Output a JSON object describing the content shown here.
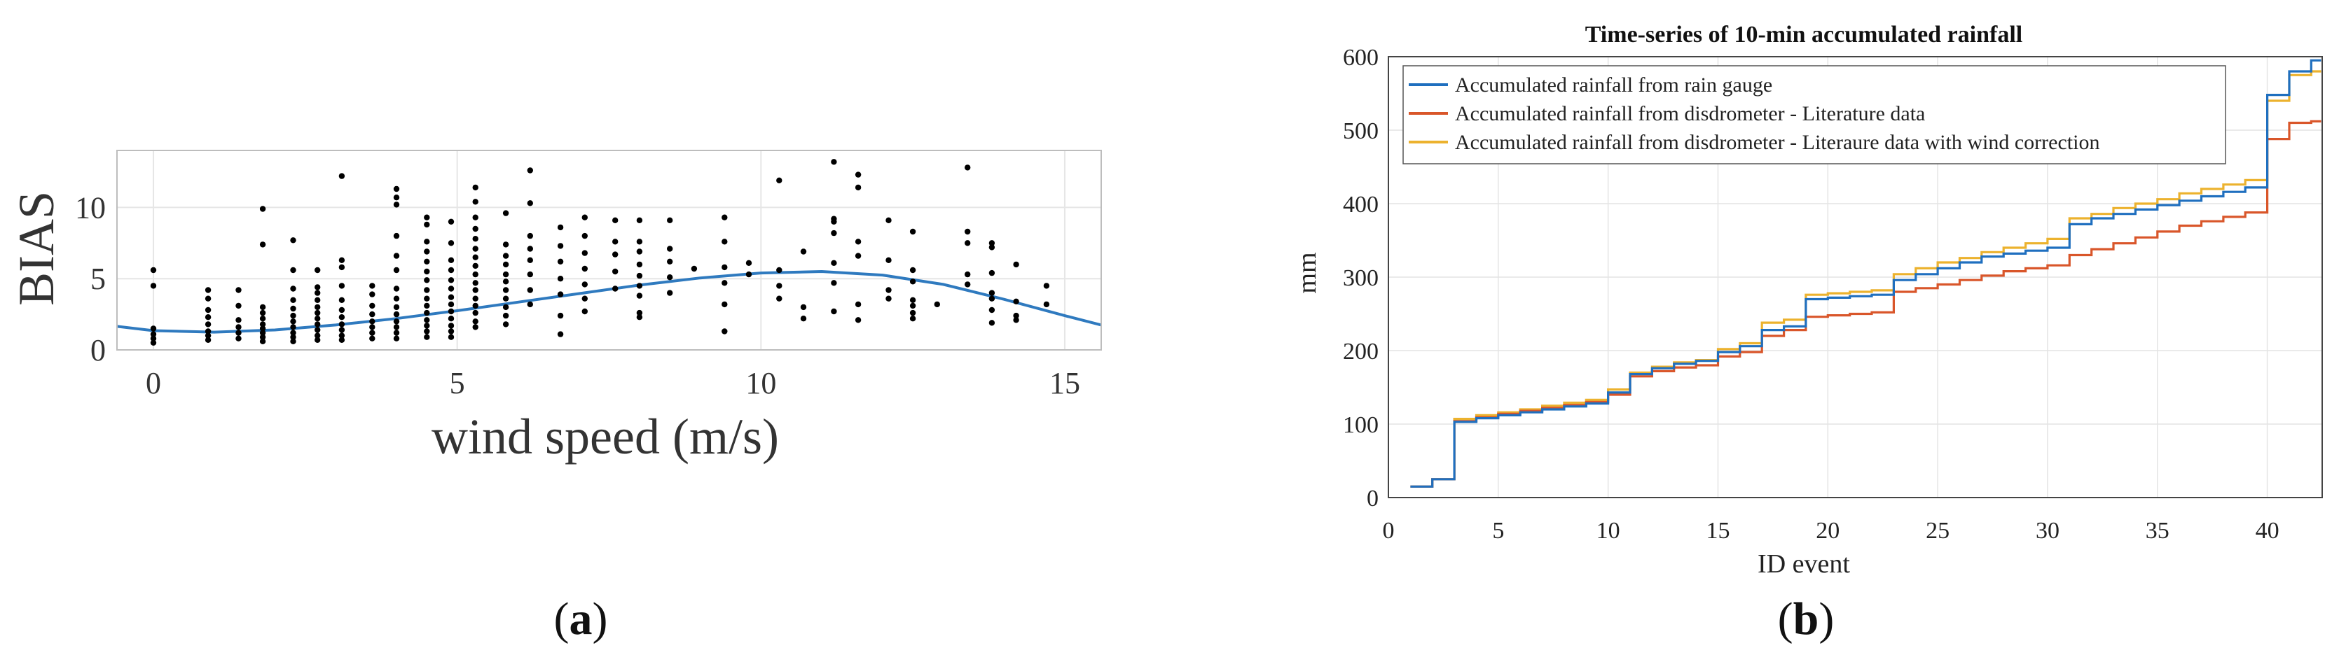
{
  "captions": {
    "a": "a",
    "b": "b"
  },
  "chart_data": [
    {
      "id": "a",
      "type": "scatter",
      "title": "",
      "xlabel": "wind speed (m/s)",
      "ylabel": "BIAS",
      "xlim": [
        -0.6,
        15.6
      ],
      "ylim": [
        0,
        14
      ],
      "xticks": [
        0,
        5,
        10,
        15
      ],
      "yticks": [
        0,
        5,
        10
      ],
      "grid": true,
      "colors": {
        "points": "#000000",
        "fit": "#2f7abf"
      },
      "fit_curve": {
        "type": "line",
        "x": [
          -0.6,
          0,
          1,
          2,
          3,
          4,
          5,
          6,
          7,
          8,
          9,
          10,
          11,
          12,
          13,
          14,
          15,
          15.6
        ],
        "y": [
          1.65,
          1.35,
          1.25,
          1.4,
          1.75,
          2.2,
          2.75,
          3.35,
          3.95,
          4.55,
          5.05,
          5.4,
          5.5,
          5.25,
          4.6,
          3.55,
          2.4,
          1.75
        ]
      },
      "points": [
        [
          0,
          0.5
        ],
        [
          0,
          0.8
        ],
        [
          0,
          1.1
        ],
        [
          0,
          1.5
        ],
        [
          0,
          4.5
        ],
        [
          0,
          5.6
        ],
        [
          0.9,
          0.7
        ],
        [
          0.9,
          1.0
        ],
        [
          0.9,
          1.3
        ],
        [
          0.9,
          1.8
        ],
        [
          0.9,
          2.3
        ],
        [
          0.9,
          2.8
        ],
        [
          0.9,
          3.6
        ],
        [
          0.9,
          4.2
        ],
        [
          1.4,
          0.8
        ],
        [
          1.4,
          1.2
        ],
        [
          1.4,
          1.6
        ],
        [
          1.4,
          2.1
        ],
        [
          1.4,
          3.1
        ],
        [
          1.4,
          4.2
        ],
        [
          1.8,
          0.6
        ],
        [
          1.8,
          0.9
        ],
        [
          1.8,
          1.2
        ],
        [
          1.8,
          1.5
        ],
        [
          1.8,
          1.8
        ],
        [
          1.8,
          2.2
        ],
        [
          1.8,
          2.6
        ],
        [
          1.8,
          3.0
        ],
        [
          1.8,
          7.4
        ],
        [
          1.8,
          9.9
        ],
        [
          2.3,
          0.6
        ],
        [
          2.3,
          0.9
        ],
        [
          2.3,
          1.2
        ],
        [
          2.3,
          1.6
        ],
        [
          2.3,
          2.0
        ],
        [
          2.3,
          2.4
        ],
        [
          2.3,
          2.9
        ],
        [
          2.3,
          3.5
        ],
        [
          2.3,
          4.3
        ],
        [
          2.3,
          5.6
        ],
        [
          2.3,
          7.7
        ],
        [
          2.7,
          0.7
        ],
        [
          2.7,
          1.0
        ],
        [
          2.7,
          1.4
        ],
        [
          2.7,
          1.8
        ],
        [
          2.7,
          2.2
        ],
        [
          2.7,
          2.6
        ],
        [
          2.7,
          3.0
        ],
        [
          2.7,
          3.5
        ],
        [
          2.7,
          4.0
        ],
        [
          2.7,
          4.4
        ],
        [
          2.7,
          5.6
        ],
        [
          3.1,
          0.7
        ],
        [
          3.1,
          1.0
        ],
        [
          3.1,
          1.4
        ],
        [
          3.1,
          1.8
        ],
        [
          3.1,
          2.3
        ],
        [
          3.1,
          2.8
        ],
        [
          3.1,
          3.5
        ],
        [
          3.1,
          4.5
        ],
        [
          3.1,
          5.8
        ],
        [
          3.1,
          6.3
        ],
        [
          3.1,
          12.2
        ],
        [
          3.6,
          0.8
        ],
        [
          3.6,
          1.2
        ],
        [
          3.6,
          1.6
        ],
        [
          3.6,
          2.0
        ],
        [
          3.6,
          2.5
        ],
        [
          3.6,
          3.1
        ],
        [
          3.6,
          3.9
        ],
        [
          3.6,
          4.5
        ],
        [
          4.0,
          0.8
        ],
        [
          4.0,
          1.2
        ],
        [
          4.0,
          1.6
        ],
        [
          4.0,
          2.0
        ],
        [
          4.0,
          2.5
        ],
        [
          4.0,
          3.0
        ],
        [
          4.0,
          3.6
        ],
        [
          4.0,
          4.3
        ],
        [
          4.0,
          5.6
        ],
        [
          4.0,
          6.6
        ],
        [
          4.0,
          8.0
        ],
        [
          4.0,
          10.2
        ],
        [
          4.0,
          10.7
        ],
        [
          4.0,
          11.3
        ],
        [
          4.5,
          0.9
        ],
        [
          4.5,
          1.3
        ],
        [
          4.5,
          1.7
        ],
        [
          4.5,
          2.1
        ],
        [
          4.5,
          2.6
        ],
        [
          4.5,
          3.1
        ],
        [
          4.5,
          3.6
        ],
        [
          4.5,
          4.2
        ],
        [
          4.5,
          4.9
        ],
        [
          4.5,
          5.5
        ],
        [
          4.5,
          6.2
        ],
        [
          4.5,
          6.9
        ],
        [
          4.5,
          7.6
        ],
        [
          4.5,
          8.8
        ],
        [
          4.5,
          9.3
        ],
        [
          4.9,
          0.9
        ],
        [
          4.9,
          1.3
        ],
        [
          4.9,
          1.7
        ],
        [
          4.9,
          2.2
        ],
        [
          4.9,
          2.7
        ],
        [
          4.9,
          3.2
        ],
        [
          4.9,
          3.7
        ],
        [
          4.9,
          4.3
        ],
        [
          4.9,
          4.9
        ],
        [
          4.9,
          5.6
        ],
        [
          4.9,
          6.3
        ],
        [
          4.9,
          7.5
        ],
        [
          4.9,
          9.0
        ],
        [
          5.3,
          1.6
        ],
        [
          5.3,
          2.0
        ],
        [
          5.3,
          2.6
        ],
        [
          5.3,
          3.1
        ],
        [
          5.3,
          3.6
        ],
        [
          5.3,
          4.2
        ],
        [
          5.3,
          4.7
        ],
        [
          5.3,
          5.3
        ],
        [
          5.3,
          5.9
        ],
        [
          5.3,
          6.5
        ],
        [
          5.3,
          7.1
        ],
        [
          5.3,
          7.8
        ],
        [
          5.3,
          8.5
        ],
        [
          5.3,
          9.3
        ],
        [
          5.3,
          10.4
        ],
        [
          5.3,
          11.4
        ],
        [
          5.8,
          1.8
        ],
        [
          5.8,
          2.4
        ],
        [
          5.8,
          3.0
        ],
        [
          5.8,
          3.6
        ],
        [
          5.8,
          4.2
        ],
        [
          5.8,
          4.8
        ],
        [
          5.8,
          5.3
        ],
        [
          5.8,
          6.0
        ],
        [
          5.8,
          6.6
        ],
        [
          5.8,
          7.4
        ],
        [
          5.8,
          9.6
        ],
        [
          6.2,
          3.2
        ],
        [
          6.2,
          4.2
        ],
        [
          6.2,
          5.3
        ],
        [
          6.2,
          6.3
        ],
        [
          6.2,
          7.1
        ],
        [
          6.2,
          8.0
        ],
        [
          6.2,
          10.3
        ],
        [
          6.2,
          12.6
        ],
        [
          6.7,
          1.1
        ],
        [
          6.7,
          2.4
        ],
        [
          6.7,
          3.9
        ],
        [
          6.7,
          5.0
        ],
        [
          6.7,
          6.2
        ],
        [
          6.7,
          7.3
        ],
        [
          6.7,
          8.6
        ],
        [
          7.1,
          2.7
        ],
        [
          7.1,
          3.6
        ],
        [
          7.1,
          4.6
        ],
        [
          7.1,
          5.7
        ],
        [
          7.1,
          6.8
        ],
        [
          7.1,
          8.0
        ],
        [
          7.1,
          9.3
        ],
        [
          7.6,
          4.3
        ],
        [
          7.6,
          5.5
        ],
        [
          7.6,
          6.7
        ],
        [
          7.6,
          7.6
        ],
        [
          7.6,
          9.1
        ],
        [
          8.0,
          2.3
        ],
        [
          8.0,
          2.6
        ],
        [
          8.0,
          3.8
        ],
        [
          8.0,
          4.5
        ],
        [
          8.0,
          5.2
        ],
        [
          8.0,
          6.0
        ],
        [
          8.0,
          6.9
        ],
        [
          8.0,
          7.6
        ],
        [
          8.0,
          9.1
        ],
        [
          8.5,
          4.0
        ],
        [
          8.5,
          5.1
        ],
        [
          8.5,
          6.2
        ],
        [
          8.5,
          7.1
        ],
        [
          8.5,
          9.1
        ],
        [
          8.9,
          5.7
        ],
        [
          9.4,
          1.3
        ],
        [
          9.4,
          3.2
        ],
        [
          9.4,
          4.7
        ],
        [
          9.4,
          5.8
        ],
        [
          9.4,
          7.6
        ],
        [
          9.4,
          9.3
        ],
        [
          9.8,
          5.3
        ],
        [
          9.8,
          6.1
        ],
        [
          10.3,
          3.6
        ],
        [
          10.3,
          4.5
        ],
        [
          10.3,
          5.6
        ],
        [
          10.3,
          11.9
        ],
        [
          10.7,
          2.2
        ],
        [
          10.7,
          3.0
        ],
        [
          10.7,
          6.9
        ],
        [
          11.2,
          2.7
        ],
        [
          11.2,
          4.7
        ],
        [
          11.2,
          6.1
        ],
        [
          11.2,
          8.2
        ],
        [
          11.2,
          9.0
        ],
        [
          11.2,
          9.2
        ],
        [
          11.2,
          13.2
        ],
        [
          11.6,
          2.1
        ],
        [
          11.6,
          3.2
        ],
        [
          11.6,
          6.6
        ],
        [
          11.6,
          7.6
        ],
        [
          11.6,
          11.4
        ],
        [
          11.6,
          12.3
        ],
        [
          12.1,
          3.6
        ],
        [
          12.1,
          4.2
        ],
        [
          12.1,
          6.3
        ],
        [
          12.1,
          9.1
        ],
        [
          12.5,
          2.2
        ],
        [
          12.5,
          2.6
        ],
        [
          12.5,
          3.1
        ],
        [
          12.5,
          3.5
        ],
        [
          12.5,
          4.8
        ],
        [
          12.5,
          5.6
        ],
        [
          12.5,
          8.3
        ],
        [
          12.9,
          3.2
        ],
        [
          13.4,
          4.6
        ],
        [
          13.4,
          5.3
        ],
        [
          13.4,
          7.5
        ],
        [
          13.4,
          8.3
        ],
        [
          13.4,
          12.8
        ],
        [
          13.8,
          1.9
        ],
        [
          13.8,
          2.8
        ],
        [
          13.8,
          3.6
        ],
        [
          13.8,
          4.0
        ],
        [
          13.8,
          5.4
        ],
        [
          13.8,
          7.2
        ],
        [
          13.8,
          7.5
        ],
        [
          14.2,
          2.1
        ],
        [
          14.2,
          2.4
        ],
        [
          14.2,
          3.4
        ],
        [
          14.2,
          6.0
        ],
        [
          14.7,
          3.2
        ],
        [
          14.7,
          4.5
        ]
      ]
    },
    {
      "id": "b",
      "type": "line",
      "title": "Time-series of 10-min accumulated rainfall",
      "xlabel": "ID event",
      "ylabel": "mm",
      "xlim": [
        0,
        42.5
      ],
      "ylim": [
        0,
        600
      ],
      "xticks": [
        0,
        5,
        10,
        15,
        20,
        25,
        30,
        35,
        40
      ],
      "yticks": [
        0,
        100,
        200,
        300,
        400,
        500,
        600
      ],
      "grid": true,
      "legend_position": "top-left",
      "step": "post",
      "x": [
        1,
        2,
        3,
        4,
        5,
        6,
        7,
        8,
        9,
        10,
        11,
        12,
        13,
        14,
        15,
        16,
        17,
        18,
        19,
        20,
        21,
        22,
        23,
        24,
        25,
        26,
        27,
        28,
        29,
        30,
        31,
        32,
        33,
        34,
        35,
        36,
        37,
        38,
        39,
        40,
        41,
        42
      ],
      "series": [
        {
          "name": "Accumulated rainfall from rain gauge",
          "color": "#1f6fbf",
          "values": [
            15,
            25,
            103,
            108,
            112,
            116,
            120,
            124,
            128,
            143,
            168,
            176,
            182,
            186,
            198,
            206,
            228,
            233,
            270,
            272,
            274,
            276,
            296,
            304,
            312,
            320,
            328,
            332,
            336,
            340,
            372,
            380,
            386,
            392,
            398,
            404,
            410,
            416,
            422,
            548,
            580,
            595
          ]
        },
        {
          "name": "Accumulated rainfall from disdrometer - Literature data",
          "color": "#d9562a",
          "values": [
            15,
            25,
            104,
            109,
            114,
            118,
            122,
            126,
            130,
            140,
            165,
            172,
            177,
            180,
            192,
            198,
            220,
            228,
            246,
            248,
            250,
            252,
            280,
            285,
            290,
            296,
            302,
            308,
            312,
            316,
            330,
            338,
            346,
            354,
            362,
            370,
            376,
            382,
            388,
            488,
            510,
            512
          ]
        },
        {
          "name": "Accumulated rainfall from disdrometer - Literaure data with wind correction",
          "color": "#ecb22e",
          "values": [
            15,
            25,
            107,
            112,
            116,
            120,
            125,
            129,
            133,
            147,
            170,
            178,
            184,
            187,
            202,
            210,
            238,
            242,
            276,
            278,
            280,
            282,
            304,
            312,
            320,
            326,
            334,
            340,
            346,
            352,
            380,
            386,
            394,
            400,
            406,
            414,
            420,
            426,
            432,
            540,
            575,
            580
          ]
        }
      ]
    }
  ]
}
